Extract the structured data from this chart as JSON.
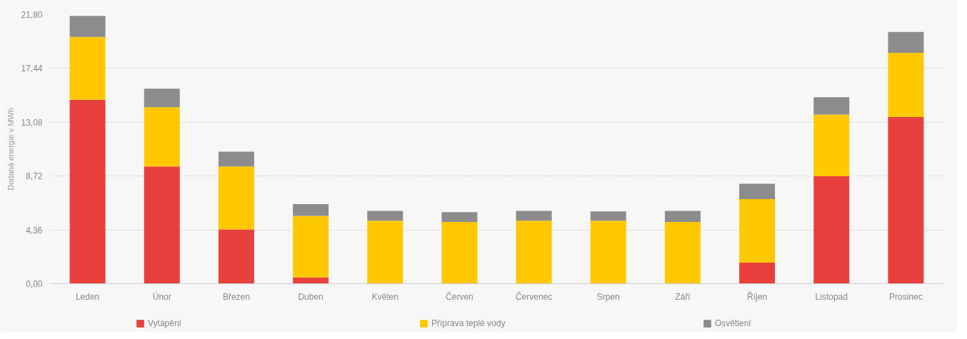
{
  "chart_data": {
    "type": "bar",
    "stacked": true,
    "ylabel": "Dodaná energie v MWh",
    "categories": [
      "Leden",
      "Únor",
      "Březen",
      "Duben",
      "Květen",
      "Červen",
      "Červenec",
      "Srpen",
      "Září",
      "Říjen",
      "Listopad",
      "Prosinec"
    ],
    "series": [
      {
        "name": "Vytápění",
        "color": "#e8403d",
        "values": [
          14.9,
          9.5,
          4.4,
          0.5,
          0,
          0,
          0,
          0,
          0,
          1.7,
          8.7,
          13.5
        ]
      },
      {
        "name": "Příprava teplé vody",
        "color": "#ffc800",
        "values": [
          5.1,
          4.8,
          5.1,
          5.0,
          5.1,
          5.0,
          5.1,
          5.1,
          5.0,
          5.15,
          5.0,
          5.2
        ]
      },
      {
        "name": "Osvětlení",
        "color": "#8c8c8c",
        "values": [
          1.7,
          1.5,
          1.2,
          0.95,
          0.8,
          0.8,
          0.8,
          0.75,
          0.9,
          1.25,
          1.4,
          1.7
        ]
      }
    ],
    "ylim": [
      0,
      21.8
    ],
    "yticks": [
      {
        "value": 0,
        "label": "0,00"
      },
      {
        "value": 4.36,
        "label": "4,36"
      },
      {
        "value": 8.72,
        "label": "8,72"
      },
      {
        "value": 13.08,
        "label": "13,08"
      },
      {
        "value": 17.44,
        "label": "17,44"
      },
      {
        "value": 21.8,
        "label": "21,80"
      }
    ],
    "grid": "y",
    "legend": "bottom"
  }
}
